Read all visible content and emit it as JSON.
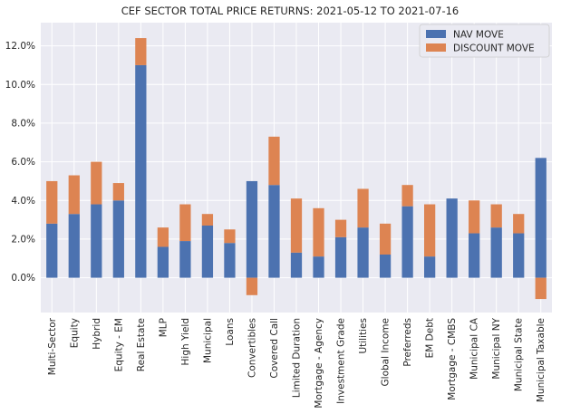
{
  "chart_data": {
    "type": "bar",
    "stacked": true,
    "title": "CEF SECTOR TOTAL PRICE RETURNS: 2021-05-12 TO 2021-07-16",
    "xlabel": "",
    "ylabel": "",
    "ylim": [
      -0.018,
      0.132
    ],
    "yticks": [
      0.0,
      0.02,
      0.04,
      0.06,
      0.08,
      0.1,
      0.12
    ],
    "ytick_labels": [
      "0.0%",
      "2.0%",
      "4.0%",
      "6.0%",
      "8.0%",
      "10.0%",
      "12.0%"
    ],
    "grid": true,
    "legend_position": "top-right",
    "categories": [
      "Multi-Sector",
      "Equity",
      "Hybrid",
      "Equity - EM",
      "Real Estate",
      "MLP",
      "High Yield",
      "Municipal",
      "Loans",
      "Convertibles",
      "Covered Call",
      "Limited Duration",
      "Mortgage - Agency",
      "Investment Grade",
      "Utilities",
      "Global Income",
      "Preferreds",
      "EM Debt",
      "Mortgage - CMBS",
      "Municipal CA",
      "Municipal NY",
      "Municipal State",
      "Municipal Taxable"
    ],
    "series": [
      {
        "name": "NAV MOVE",
        "color": "#4c72b0",
        "values": [
          0.028,
          0.033,
          0.038,
          0.04,
          0.11,
          0.016,
          0.019,
          0.027,
          0.018,
          0.05,
          0.048,
          0.013,
          0.011,
          0.021,
          0.026,
          0.012,
          0.037,
          0.011,
          0.041,
          0.023,
          0.026,
          0.023,
          0.062
        ]
      },
      {
        "name": "DISCOUNT MOVE",
        "color": "#dd8452",
        "values": [
          0.022,
          0.02,
          0.022,
          0.009,
          0.014,
          0.01,
          0.019,
          0.006,
          0.007,
          -0.009,
          0.025,
          0.028,
          0.025,
          0.009,
          0.02,
          0.016,
          0.011,
          0.027,
          0.0,
          0.017,
          0.012,
          0.01,
          -0.011
        ]
      }
    ]
  }
}
